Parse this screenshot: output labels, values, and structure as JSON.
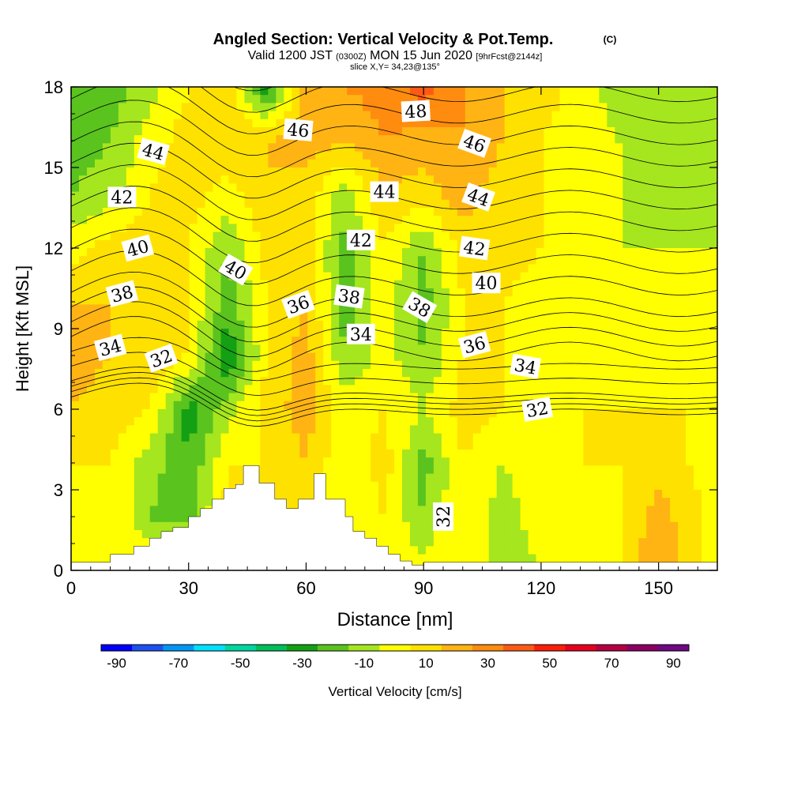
{
  "chart_data": {
    "type": "heatmap",
    "title": "Angled Section: Vertical Velocity & Pot.Temp.",
    "title_mark": "(C)",
    "subtitle_parts": [
      "Valid 1200 JST",
      "(0300Z)",
      "MON 15 Jun 2020",
      "[9hrFcst@2144z]"
    ],
    "slice_text": "slice X,Y= 34,23@135°",
    "xlabel": "Distance [nm]",
    "ylabel": "Height [Kft MSL]",
    "xlim": [
      0,
      165
    ],
    "ylim": [
      0,
      18
    ],
    "x_ticks": [
      0,
      30,
      60,
      90,
      120,
      150
    ],
    "y_ticks": [
      0,
      3,
      6,
      9,
      12,
      15,
      18
    ],
    "colorbar": {
      "label": "Vertical Velocity [cm/s]",
      "tick_labels": [
        "-90",
        "-70",
        "-50",
        "-30",
        "-10",
        "10",
        "30",
        "50",
        "70",
        "90"
      ],
      "tick_values": [
        -90,
        -70,
        -50,
        -30,
        -10,
        10,
        30,
        50,
        70,
        90
      ],
      "colors": [
        "#0000ff",
        "#1e50f0",
        "#0096f5",
        "#00e1ff",
        "#00d7a0",
        "#00be5a",
        "#14a014",
        "#5ac31e",
        "#a5e61e",
        "#ffff00",
        "#ffe100",
        "#ffb414",
        "#ff8c0f",
        "#ff5a14",
        "#ff1e0a",
        "#e6001e",
        "#b40041",
        "#8c0064",
        "#6e0a82"
      ]
    },
    "velocity_fill": {
      "x": [
        0,
        10,
        20,
        30,
        40,
        50,
        60,
        70,
        80,
        90,
        100,
        110,
        120,
        130,
        140,
        150,
        165
      ],
      "y": [
        0,
        2,
        4,
        6,
        8,
        10,
        12,
        14,
        16,
        18
      ],
      "values": [
        [
          0,
          5,
          5,
          10,
          5,
          0,
          5,
          0,
          0,
          0,
          5,
          -10,
          -5,
          0,
          5,
          25,
          0
        ],
        [
          0,
          5,
          -15,
          -20,
          10,
          5,
          15,
          -5,
          5,
          -15,
          5,
          -10,
          0,
          0,
          5,
          20,
          0
        ],
        [
          5,
          5,
          -10,
          -25,
          5,
          5,
          15,
          -5,
          10,
          -20,
          5,
          -5,
          0,
          5,
          5,
          10,
          0
        ],
        [
          15,
          10,
          5,
          -30,
          -10,
          10,
          20,
          0,
          5,
          -5,
          10,
          5,
          0,
          5,
          5,
          5,
          5
        ],
        [
          20,
          15,
          15,
          5,
          -35,
          5,
          20,
          -15,
          0,
          -15,
          5,
          5,
          0,
          5,
          0,
          0,
          0
        ],
        [
          15,
          15,
          10,
          5,
          -20,
          5,
          15,
          -20,
          0,
          -20,
          5,
          5,
          0,
          5,
          0,
          -5,
          0
        ],
        [
          0,
          10,
          10,
          5,
          -15,
          10,
          10,
          -20,
          5,
          -15,
          10,
          10,
          5,
          0,
          -5,
          -5,
          -5
        ],
        [
          -15,
          -10,
          5,
          10,
          0,
          15,
          10,
          -10,
          15,
          10,
          20,
          10,
          5,
          0,
          -5,
          -10,
          -5
        ],
        [
          -20,
          -15,
          0,
          10,
          15,
          15,
          20,
          15,
          25,
          20,
          25,
          15,
          5,
          0,
          -5,
          -10,
          -5
        ],
        [
          -15,
          -20,
          -10,
          5,
          15,
          -35,
          20,
          25,
          30,
          40,
          25,
          15,
          10,
          0,
          -10,
          -15,
          -10
        ]
      ]
    },
    "theta_contours": [
      32,
      34,
      36,
      38,
      40,
      42,
      44,
      46,
      48
    ],
    "contour_labels": [
      {
        "text": "48",
        "x": 88,
        "y": 17.1,
        "angle": -3
      },
      {
        "text": "46",
        "x": 58,
        "y": 16.4,
        "angle": 5
      },
      {
        "text": "46",
        "x": 103,
        "y": 15.9,
        "angle": 20
      },
      {
        "text": "44",
        "x": 21,
        "y": 15.6,
        "angle": 15
      },
      {
        "text": "44",
        "x": 80,
        "y": 14.1,
        "angle": 0
      },
      {
        "text": "44",
        "x": 104,
        "y": 13.9,
        "angle": 20
      },
      {
        "text": "42",
        "x": 13,
        "y": 13.9,
        "angle": 0
      },
      {
        "text": "42",
        "x": 74,
        "y": 12.3,
        "angle": 0
      },
      {
        "text": "42",
        "x": 103,
        "y": 12.0,
        "angle": 8
      },
      {
        "text": "40",
        "x": 17,
        "y": 12.0,
        "angle": -15
      },
      {
        "text": "40",
        "x": 42,
        "y": 11.2,
        "angle": 30
      },
      {
        "text": "40",
        "x": 106,
        "y": 10.7,
        "angle": 0
      },
      {
        "text": "38",
        "x": 13,
        "y": 10.3,
        "angle": -15
      },
      {
        "text": "38",
        "x": 71,
        "y": 10.2,
        "angle": 8
      },
      {
        "text": "38",
        "x": 89,
        "y": 9.8,
        "angle": 30
      },
      {
        "text": "36",
        "x": 58,
        "y": 9.9,
        "angle": -20
      },
      {
        "text": "36",
        "x": 103,
        "y": 8.4,
        "angle": -15
      },
      {
        "text": "34",
        "x": 10,
        "y": 8.3,
        "angle": -15
      },
      {
        "text": "34",
        "x": 74,
        "y": 8.8,
        "angle": 0
      },
      {
        "text": "34",
        "x": 116,
        "y": 7.6,
        "angle": 10
      },
      {
        "text": "32",
        "x": 23,
        "y": 7.9,
        "angle": -20
      },
      {
        "text": "32",
        "x": 119,
        "y": 6.0,
        "angle": -10
      },
      {
        "text": "32",
        "x": 95,
        "y": 2.0,
        "angle": -90
      }
    ],
    "terrain": {
      "x": [
        0,
        10,
        10,
        16,
        16,
        20,
        20,
        23,
        23,
        26,
        26,
        30,
        30,
        33,
        33,
        36,
        36,
        39,
        39,
        42,
        42,
        44,
        44,
        48,
        48,
        52,
        52,
        55,
        55,
        58,
        58,
        62,
        62,
        65,
        65,
        70,
        70,
        72,
        72,
        75,
        75,
        78,
        78,
        81,
        81,
        84,
        84,
        87,
        87,
        90,
        90,
        165
      ],
      "height": [
        0.3,
        0.3,
        0.6,
        0.6,
        0.9,
        0.9,
        1.2,
        1.2,
        1.45,
        1.45,
        1.6,
        1.6,
        2.0,
        2.0,
        2.3,
        2.3,
        2.65,
        2.65,
        3.05,
        3.05,
        3.2,
        3.2,
        3.9,
        3.9,
        3.25,
        3.25,
        2.65,
        2.65,
        2.3,
        2.3,
        2.65,
        2.65,
        3.6,
        3.6,
        2.65,
        2.65,
        2.0,
        2.0,
        1.45,
        1.45,
        1.2,
        1.2,
        0.9,
        0.9,
        0.6,
        0.6,
        0.35,
        0.35,
        0.2,
        0.2,
        0.3,
        0.3
      ]
    },
    "colors": {
      "terrain": "#ffffff",
      "contour": "#000000"
    }
  }
}
